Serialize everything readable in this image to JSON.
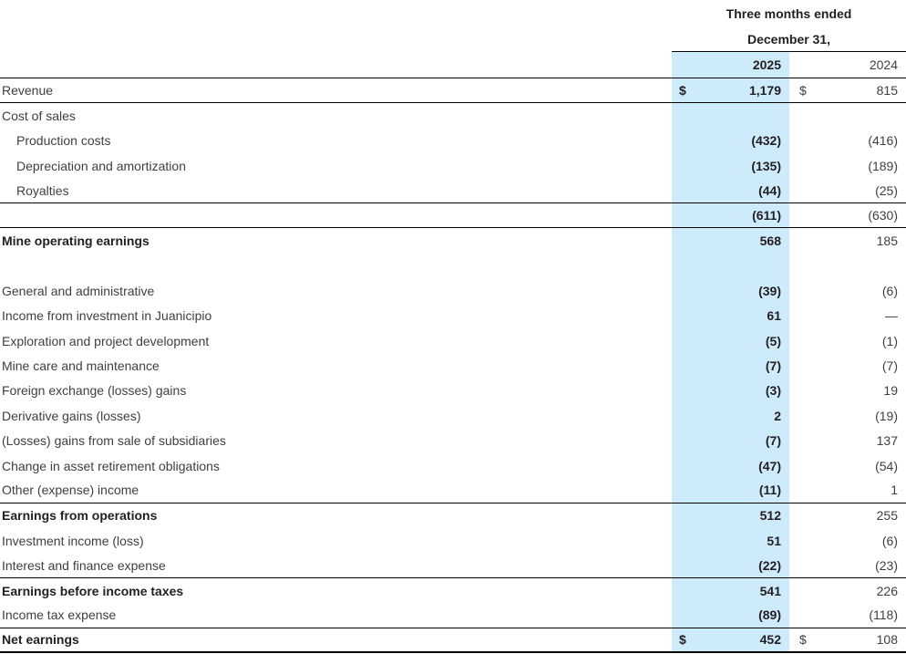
{
  "colors": {
    "highlight_2025_column": "#ceebfc",
    "rule_line": "#000000",
    "text_regular": "#3f3f41",
    "text_bold": "#231f20"
  },
  "header": {
    "line1": "Three months ended",
    "line2": "December 31,",
    "col2025": "2025",
    "col2024": "2024"
  },
  "table": {
    "currency_symbol": "$",
    "rows": [
      {
        "label": "Revenue",
        "indent": 0,
        "bold": false,
        "dollar": true,
        "v2025": "1,179",
        "v2024": "815",
        "border": "bottom"
      },
      {
        "label": "Cost of sales",
        "indent": 0,
        "bold": false,
        "dollar": false,
        "v2025": "",
        "v2024": "",
        "border": "none"
      },
      {
        "label": "Production costs",
        "indent": 1,
        "bold": false,
        "dollar": false,
        "v2025": "(432)",
        "v2024": "(416)",
        "border": "none"
      },
      {
        "label": "Depreciation and amortization",
        "indent": 1,
        "bold": false,
        "dollar": false,
        "v2025": "(135)",
        "v2024": "(189)",
        "border": "none"
      },
      {
        "label": "Royalties",
        "indent": 1,
        "bold": false,
        "dollar": false,
        "v2025": "(44)",
        "v2024": "(25)",
        "border": "bottom"
      },
      {
        "label": "",
        "indent": 0,
        "bold": false,
        "dollar": false,
        "v2025": "(611)",
        "v2024": "(630)",
        "border": "bottom"
      },
      {
        "label": "Mine operating earnings",
        "indent": 0,
        "bold": true,
        "dollar": false,
        "v2025": "568",
        "v2024": "185",
        "border": "none"
      },
      {
        "label": "",
        "indent": 0,
        "bold": false,
        "dollar": false,
        "v2025": "",
        "v2024": "",
        "border": "none"
      },
      {
        "label": "General and administrative",
        "indent": 0,
        "bold": false,
        "dollar": false,
        "v2025": "(39)",
        "v2024": "(6)",
        "border": "none"
      },
      {
        "label": "Income from investment in Juanicipio",
        "indent": 0,
        "bold": false,
        "dollar": false,
        "v2025": "61",
        "v2024": "—",
        "border": "none"
      },
      {
        "label": "Exploration and project development",
        "indent": 0,
        "bold": false,
        "dollar": false,
        "v2025": "(5)",
        "v2024": "(1)",
        "border": "none"
      },
      {
        "label": "Mine care and maintenance",
        "indent": 0,
        "bold": false,
        "dollar": false,
        "v2025": "(7)",
        "v2024": "(7)",
        "border": "none"
      },
      {
        "label": "Foreign exchange (losses) gains",
        "indent": 0,
        "bold": false,
        "dollar": false,
        "v2025": "(3)",
        "v2024": "19",
        "border": "none"
      },
      {
        "label": "Derivative gains (losses)",
        "indent": 0,
        "bold": false,
        "dollar": false,
        "v2025": "2",
        "v2024": "(19)",
        "border": "none"
      },
      {
        "label": "(Losses) gains from sale of subsidiaries",
        "indent": 0,
        "bold": false,
        "dollar": false,
        "v2025": "(7)",
        "v2024": "137",
        "border": "none"
      },
      {
        "label": "Change in asset retirement obligations",
        "indent": 0,
        "bold": false,
        "dollar": false,
        "v2025": "(47)",
        "v2024": "(54)",
        "border": "none"
      },
      {
        "label": "Other (expense) income",
        "indent": 0,
        "bold": false,
        "dollar": false,
        "v2025": "(11)",
        "v2024": "1",
        "border": "bottom"
      },
      {
        "label": "Earnings from operations",
        "indent": 0,
        "bold": true,
        "dollar": false,
        "v2025": "512",
        "v2024": "255",
        "border": "none"
      },
      {
        "label": "Investment income (loss)",
        "indent": 0,
        "bold": false,
        "dollar": false,
        "v2025": "51",
        "v2024": "(6)",
        "border": "none"
      },
      {
        "label": "Interest and finance expense",
        "indent": 0,
        "bold": false,
        "dollar": false,
        "v2025": "(22)",
        "v2024": "(23)",
        "border": "bottom"
      },
      {
        "label": "Earnings before income taxes",
        "indent": 0,
        "bold": true,
        "dollar": false,
        "v2025": "541",
        "v2024": "226",
        "border": "none"
      },
      {
        "label": "Income tax expense",
        "indent": 0,
        "bold": false,
        "dollar": false,
        "v2025": "(89)",
        "v2024": "(118)",
        "border": "bottom"
      },
      {
        "label": "Net earnings",
        "indent": 0,
        "bold": true,
        "dollar": true,
        "v2025": "452",
        "v2024": "108",
        "border": "bottom-thick"
      }
    ]
  }
}
